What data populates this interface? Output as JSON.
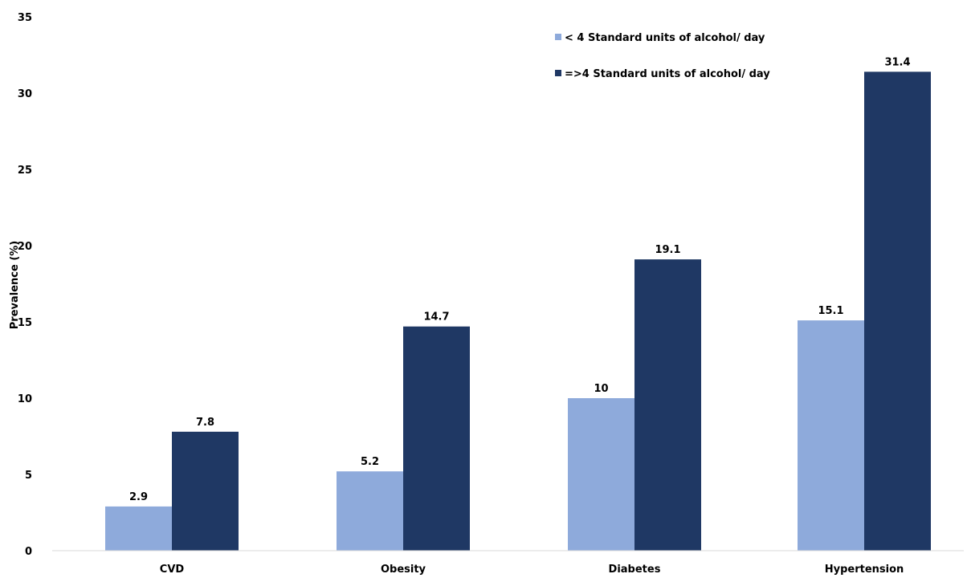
{
  "chart_data": {
    "type": "bar",
    "title": "",
    "xlabel": "",
    "ylabel": "Prevalence (%)",
    "ylim": [
      0,
      35
    ],
    "yticks": [
      0,
      5,
      10,
      15,
      20,
      25,
      30,
      35
    ],
    "grid": false,
    "legend_position": "top-right",
    "categories": [
      "CVD",
      "Obesity",
      "Diabetes",
      "Hypertension"
    ],
    "series": [
      {
        "name": "< 4 Standard units of alcohol/ day",
        "color": "#8eaadb",
        "values": [
          2.9,
          5.2,
          10,
          15.1
        ],
        "labels": [
          "2.9",
          "5.2",
          "10",
          "15.1"
        ]
      },
      {
        "name": "=>4 Standard units of alcohol/ day",
        "color": "#1f3864",
        "values": [
          7.8,
          14.7,
          19.1,
          31.4
        ],
        "labels": [
          "7.8",
          "14.7",
          "19.1",
          "31.4"
        ]
      }
    ]
  }
}
